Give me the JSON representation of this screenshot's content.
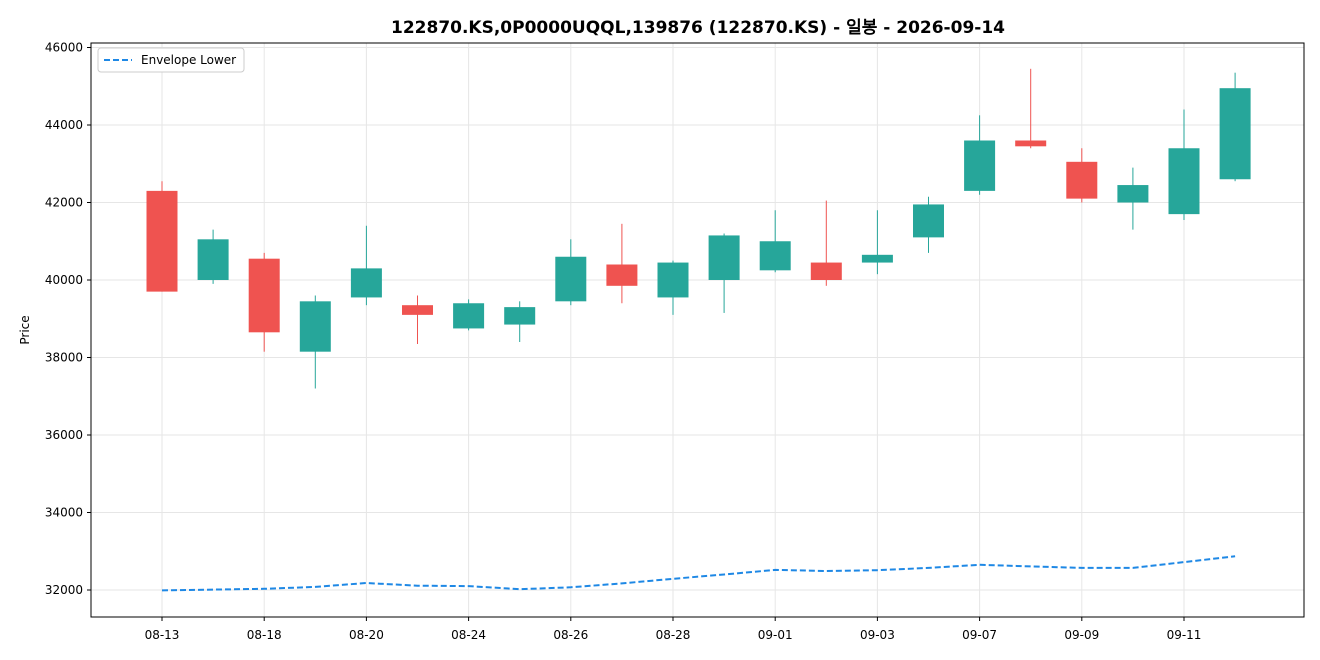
{
  "chart_data": {
    "type": "candlestick",
    "title": "122870.KS,0P0000UQQL,139876 (122870.KS) - 일봉 - 2026-09-14",
    "ylabel": "Price",
    "xlabel": "",
    "ylim": [
      31300,
      46100
    ],
    "yticks": [
      32000,
      34000,
      36000,
      38000,
      40000,
      42000,
      44000,
      46000
    ],
    "grid": true,
    "legend_position": "top-left",
    "colors": {
      "up": "#26a69a",
      "down": "#ef5350",
      "envelope": "#1e88e5",
      "grid": "#e6e6e6",
      "frame": "#000000"
    },
    "xtick_labels": [
      "08-13",
      "08-18",
      "08-20",
      "08-24",
      "08-26",
      "08-28",
      "09-01",
      "09-03",
      "09-07",
      "09-09",
      "09-11"
    ],
    "xtick_indices": [
      0,
      2,
      4,
      6,
      8,
      10,
      12,
      14,
      16,
      18,
      20
    ],
    "candles": [
      {
        "o": 42300,
        "h": 42550,
        "l": 39700,
        "c": 39700
      },
      {
        "o": 40000,
        "h": 41300,
        "l": 39900,
        "c": 41050
      },
      {
        "o": 40550,
        "h": 40700,
        "l": 38150,
        "c": 38650
      },
      {
        "o": 38150,
        "h": 39600,
        "l": 37200,
        "c": 39450
      },
      {
        "o": 39550,
        "h": 41400,
        "l": 39350,
        "c": 40300
      },
      {
        "o": 39350,
        "h": 39600,
        "l": 38350,
        "c": 39100
      },
      {
        "o": 38750,
        "h": 39500,
        "l": 38700,
        "c": 39400
      },
      {
        "o": 38850,
        "h": 39450,
        "l": 38400,
        "c": 39300
      },
      {
        "o": 39450,
        "h": 41050,
        "l": 39350,
        "c": 40600
      },
      {
        "o": 40400,
        "h": 41450,
        "l": 39400,
        "c": 39850
      },
      {
        "o": 39550,
        "h": 40500,
        "l": 39100,
        "c": 40450
      },
      {
        "o": 40000,
        "h": 41200,
        "l": 39150,
        "c": 41150
      },
      {
        "o": 40250,
        "h": 41800,
        "l": 40200,
        "c": 41000
      },
      {
        "o": 40450,
        "h": 42050,
        "l": 39850,
        "c": 40000
      },
      {
        "o": 40450,
        "h": 41800,
        "l": 40150,
        "c": 40650
      },
      {
        "o": 41100,
        "h": 42150,
        "l": 40700,
        "c": 41950
      },
      {
        "o": 42300,
        "h": 44250,
        "l": 42200,
        "c": 43600
      },
      {
        "o": 43600,
        "h": 45450,
        "l": 43400,
        "c": 43450
      },
      {
        "o": 43050,
        "h": 43400,
        "l": 42000,
        "c": 42100
      },
      {
        "o": 42000,
        "h": 42900,
        "l": 41300,
        "c": 42450
      },
      {
        "o": 41700,
        "h": 44400,
        "l": 41550,
        "c": 43400
      },
      {
        "o": 42600,
        "h": 45350,
        "l": 42550,
        "c": 44950
      }
    ],
    "series": [
      {
        "name": "Envelope Lower",
        "values": [
          31990,
          32010,
          32030,
          32080,
          32180,
          32110,
          32100,
          32020,
          32070,
          32170,
          32290,
          32400,
          32520,
          32490,
          32510,
          32570,
          32650,
          32610,
          32570,
          32570,
          32720,
          32870
        ]
      }
    ]
  }
}
